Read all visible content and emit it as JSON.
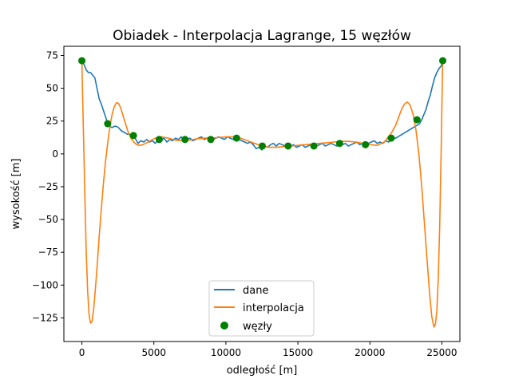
{
  "chart_data": {
    "type": "line",
    "title": "Obiadek - Interpolacja Lagrange, 15 węzłów",
    "xlabel": "odległość [m]",
    "ylabel": "wysokość [m]",
    "xlim": [
      -1250,
      26250
    ],
    "ylim": [
      -143,
      82
    ],
    "xticks": [
      0,
      5000,
      10000,
      15000,
      20000,
      25000
    ],
    "xtick_labels": [
      "0",
      "5000",
      "10000",
      "15000",
      "20000",
      "25000"
    ],
    "yticks": [
      -125,
      -100,
      -75,
      -50,
      -25,
      0,
      25,
      50,
      75
    ],
    "ytick_labels": [
      "−125",
      "−100",
      "−75",
      "−50",
      "−25",
      "0",
      "25",
      "50",
      "75"
    ],
    "grid": false,
    "legend": {
      "placement": "lower-center",
      "entries": [
        "dane",
        "interpolacja",
        "węzły"
      ]
    },
    "colors": {
      "dane": "#1f77b4",
      "interpolacja": "#ff7f0e",
      "wezly": "#008000"
    },
    "series": [
      {
        "name": "dane",
        "kind": "line",
        "x": [
          0,
          150,
          300,
          450,
          600,
          750,
          900,
          1050,
          1200,
          1350,
          1500,
          1650,
          1800,
          1950,
          2100,
          2250,
          2400,
          2550,
          2700,
          2850,
          3000,
          3150,
          3300,
          3450,
          3600,
          3750,
          3900,
          4100,
          4300,
          4500,
          4700,
          4900,
          5100,
          5300,
          5500,
          5700,
          5900,
          6100,
          6300,
          6500,
          6700,
          6900,
          7100,
          7300,
          7500,
          7700,
          7900,
          8100,
          8300,
          8500,
          8700,
          8900,
          9100,
          9300,
          9500,
          9700,
          9900,
          10100,
          10300,
          10500,
          10700,
          10900,
          11100,
          11300,
          11500,
          11700,
          11900,
          12100,
          12300,
          12500,
          12700,
          12900,
          13100,
          13300,
          13500,
          13700,
          13900,
          14100,
          14300,
          14500,
          14700,
          14900,
          15100,
          15300,
          15500,
          15700,
          15900,
          16100,
          16300,
          16500,
          16700,
          16900,
          17100,
          17300,
          17500,
          17700,
          17900,
          18100,
          18300,
          18500,
          18700,
          18900,
          19100,
          19300,
          19500,
          19700,
          19900,
          20100,
          20300,
          20500,
          20700,
          20900,
          21100,
          21300,
          21500,
          21650,
          21800,
          21950,
          22100,
          22250,
          22400,
          22550,
          22700,
          22850,
          23000,
          23150,
          23300,
          23450,
          23600,
          23750,
          23900,
          24050,
          24200,
          24350,
          24500,
          24650,
          24800,
          24950,
          25050
        ],
        "y": [
          71,
          68,
          64,
          62,
          62,
          60,
          58,
          50,
          42,
          38,
          33,
          28,
          23,
          21,
          20,
          21,
          21,
          20,
          18,
          17,
          16,
          15,
          15,
          14,
          13,
          11,
          8,
          10,
          9,
          11,
          9,
          10,
          8,
          11,
          10,
          12,
          9,
          11,
          10,
          12,
          11,
          13,
          10,
          11,
          12,
          10,
          11,
          12,
          13,
          11,
          12,
          13,
          11,
          12,
          13,
          12,
          11,
          13,
          12,
          11,
          12,
          11,
          10,
          9,
          8,
          9,
          7,
          4,
          5,
          3,
          6,
          5,
          7,
          8,
          6,
          8,
          7,
          6,
          5,
          6,
          7,
          5,
          6,
          7,
          5,
          6,
          7,
          5,
          6,
          7,
          8,
          6,
          7,
          8,
          7,
          6,
          8,
          7,
          8,
          6,
          7,
          8,
          9,
          7,
          8,
          6,
          8,
          9,
          10,
          8,
          9,
          8,
          10,
          9,
          11,
          12,
          12,
          13,
          14,
          15,
          16,
          17,
          18,
          19,
          20,
          21,
          22,
          23,
          26,
          30,
          34,
          40,
          45,
          52,
          58,
          62,
          65,
          67,
          71
        ]
      },
      {
        "name": "interpolacja",
        "kind": "line",
        "x": [
          0,
          100,
          200,
          300,
          400,
          500,
          600,
          700,
          800,
          900,
          1000,
          1100,
          1200,
          1350,
          1500,
          1650,
          1800,
          1950,
          2100,
          2250,
          2400,
          2550,
          2700,
          2850,
          3000,
          3200,
          3400,
          3600,
          3800,
          4000,
          4250,
          4500,
          4750,
          5000,
          5250,
          5500,
          5750,
          6000,
          6500,
          7000,
          7500,
          8000,
          8500,
          9000,
          9500,
          10000,
          10500,
          11000,
          11500,
          12000,
          12500,
          13000,
          13500,
          14000,
          14500,
          15000,
          15500,
          16000,
          16500,
          17000,
          17500,
          18000,
          18500,
          19000,
          19500,
          20000,
          20500,
          21000,
          21500,
          21800,
          22000,
          22200,
          22400,
          22600,
          22800,
          23000,
          23200,
          23400,
          23600,
          23800,
          24000,
          24150,
          24300,
          24450,
          24550,
          24650,
          24750,
          24850,
          24950,
          25050
        ],
        "y": [
          71,
          22,
          -30,
          -75,
          -105,
          -123,
          -129,
          -128,
          -120,
          -108,
          -94,
          -79,
          -63,
          -42,
          -22,
          -5,
          9,
          21,
          30,
          36,
          39,
          38.5,
          35,
          29.5,
          24,
          17,
          12,
          9,
          7,
          6.5,
          7,
          8.5,
          10,
          11.5,
          12.5,
          13,
          12.5,
          12,
          10.5,
          10,
          10.5,
          11.5,
          12,
          12,
          12.5,
          13,
          13,
          12,
          10,
          8,
          6,
          5,
          5,
          5.5,
          6,
          6.5,
          7,
          7.5,
          8,
          8.5,
          9,
          9.5,
          9.5,
          9,
          8,
          7,
          6.5,
          9,
          16,
          22,
          28,
          34,
          38,
          39.5,
          37,
          30,
          18,
          0,
          -25,
          -55,
          -85,
          -107,
          -124,
          -132,
          -130,
          -120,
          -95,
          -55,
          5,
          71
        ]
      },
      {
        "name": "węzły",
        "kind": "scatter",
        "x": [
          0,
          1790,
          3580,
          5370,
          7160,
          8950,
          10740,
          12530,
          14320,
          16110,
          17900,
          19690,
          21480,
          23270,
          25060
        ],
        "y": [
          71,
          23,
          14,
          11,
          11,
          11,
          12,
          6,
          6,
          6,
          8,
          7,
          12,
          26,
          71
        ]
      }
    ]
  }
}
